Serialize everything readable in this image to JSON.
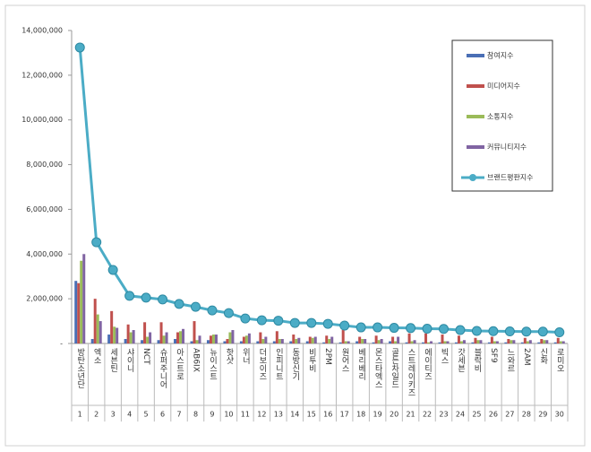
{
  "chart_data": {
    "type": "bar",
    "categories": [
      "방탄소년단",
      "엑소",
      "세븐틴",
      "샤이니",
      "NCT",
      "슈퍼주니어",
      "아스트로",
      "AB6IX",
      "뉴이스트",
      "핫샷",
      "위너",
      "더보이즈",
      "인피니트",
      "동방신기",
      "비투비",
      "2PM",
      "원어스",
      "베리베리",
      "몬스타엑스",
      "골든차일드",
      "스트레이키즈",
      "에이티즈",
      "빅스",
      "갓세븐",
      "블락비",
      "SF9",
      "느와르",
      "2AM",
      "신화",
      "로미오"
    ],
    "ranks": [
      1,
      2,
      3,
      4,
      5,
      6,
      7,
      8,
      9,
      10,
      11,
      12,
      13,
      14,
      15,
      16,
      17,
      18,
      19,
      20,
      21,
      22,
      23,
      24,
      25,
      26,
      27,
      28,
      29,
      30
    ],
    "ylim": [
      0,
      14000000
    ],
    "yticks": [
      {
        "value": 0,
        "label": "-"
      },
      {
        "value": 2000000,
        "label": "2,000,000"
      },
      {
        "value": 4000000,
        "label": "4,000,000"
      },
      {
        "value": 6000000,
        "label": "6,000,000"
      },
      {
        "value": 8000000,
        "label": "8,000,000"
      },
      {
        "value": 10000000,
        "label": "10,000,000"
      },
      {
        "value": 12000000,
        "label": "12,000,000"
      },
      {
        "value": 14000000,
        "label": "14,000,000"
      }
    ],
    "legend": "upper right",
    "series": [
      {
        "name": "참여지수",
        "type": "bar",
        "color": "#4a6fb5",
        "values": [
          2800000,
          200000,
          400000,
          200000,
          150000,
          150000,
          200000,
          100000,
          150000,
          100000,
          100000,
          100000,
          100000,
          100000,
          100000,
          50000,
          50000,
          100000,
          50000,
          100000,
          50000,
          50000,
          50000,
          50000,
          50000,
          50000,
          50000,
          50000,
          50000,
          50000
        ]
      },
      {
        "name": "미디어지수",
        "type": "bar",
        "color": "#c0504d",
        "values": [
          2700000,
          2000000,
          1450000,
          850000,
          950000,
          950000,
          500000,
          1000000,
          350000,
          200000,
          300000,
          500000,
          550000,
          400000,
          300000,
          350000,
          600000,
          300000,
          350000,
          300000,
          450000,
          450000,
          400000,
          350000,
          250000,
          300000,
          200000,
          250000,
          200000,
          250000
        ]
      },
      {
        "name": "소통지수",
        "type": "bar",
        "color": "#9bbb59",
        "values": [
          3700000,
          1300000,
          750000,
          500000,
          300000,
          350000,
          550000,
          150000,
          400000,
          500000,
          350000,
          200000,
          200000,
          200000,
          250000,
          200000,
          100000,
          200000,
          150000,
          100000,
          100000,
          50000,
          100000,
          100000,
          150000,
          100000,
          150000,
          100000,
          150000,
          100000
        ]
      },
      {
        "name": "커뮤니티지수",
        "type": "bar",
        "color": "#8064a2",
        "values": [
          4000000,
          1000000,
          700000,
          600000,
          500000,
          500000,
          650000,
          350000,
          400000,
          600000,
          450000,
          300000,
          200000,
          250000,
          300000,
          300000,
          100000,
          200000,
          200000,
          300000,
          150000,
          100000,
          100000,
          150000,
          150000,
          100000,
          150000,
          150000,
          150000,
          100000
        ]
      },
      {
        "name": "브랜드평판지수",
        "type": "line",
        "color": "#4bacc6",
        "values": [
          13240000,
          4530000,
          3290000,
          2130000,
          2050000,
          1970000,
          1770000,
          1640000,
          1480000,
          1360000,
          1120000,
          1040000,
          1020000,
          920000,
          920000,
          880000,
          800000,
          720000,
          720000,
          700000,
          690000,
          660000,
          650000,
          600000,
          560000,
          550000,
          540000,
          530000,
          530000,
          500000
        ]
      }
    ]
  }
}
